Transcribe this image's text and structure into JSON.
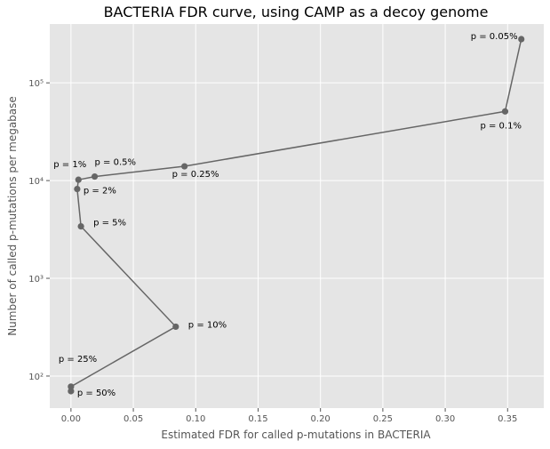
{
  "chart_data": {
    "type": "line",
    "title": "BACTERIA FDR curve, using CAMP as a decoy genome",
    "xlabel": "Estimated FDR for called p-mutations in BACTERIA",
    "ylabel": "Number of called p-mutations per megabase",
    "xscale": "linear",
    "yscale": "log",
    "xlim": [
      -0.017,
      0.379
    ],
    "ylim": [
      47,
      400000
    ],
    "grid": true,
    "line_color": "#666666",
    "background_color": "#e5e5e5",
    "x_ticks": [
      0.0,
      0.05,
      0.1,
      0.15,
      0.2,
      0.25,
      0.3,
      0.35
    ],
    "x_tick_labels": [
      "0.00",
      "0.05",
      "0.10",
      "0.15",
      "0.20",
      "0.25",
      "0.30",
      "0.35"
    ],
    "y_ticks": [
      100,
      1000,
      10000,
      100000
    ],
    "y_tick_labels": [
      "10²",
      "10³",
      "10⁴",
      "10⁵"
    ],
    "points": [
      {
        "label": "p = 0.05%",
        "x": 0.361,
        "y": 280000
      },
      {
        "label": "p = 0.1%",
        "x": 0.348,
        "y": 51000
      },
      {
        "label": "p = 0.25%",
        "x": 0.091,
        "y": 14000
      },
      {
        "label": "p = 0.5%",
        "x": 0.019,
        "y": 11000
      },
      {
        "label": "p = 1%",
        "x": 0.006,
        "y": 10200
      },
      {
        "label": "p = 2%",
        "x": 0.005,
        "y": 8200
      },
      {
        "label": "p = 5%",
        "x": 0.008,
        "y": 3400
      },
      {
        "label": "p = 10%",
        "x": 0.084,
        "y": 320
      },
      {
        "label": "p = 25%",
        "x": 0.0,
        "y": 78
      },
      {
        "label": "p = 50%",
        "x": 0.0,
        "y": 70
      }
    ]
  }
}
